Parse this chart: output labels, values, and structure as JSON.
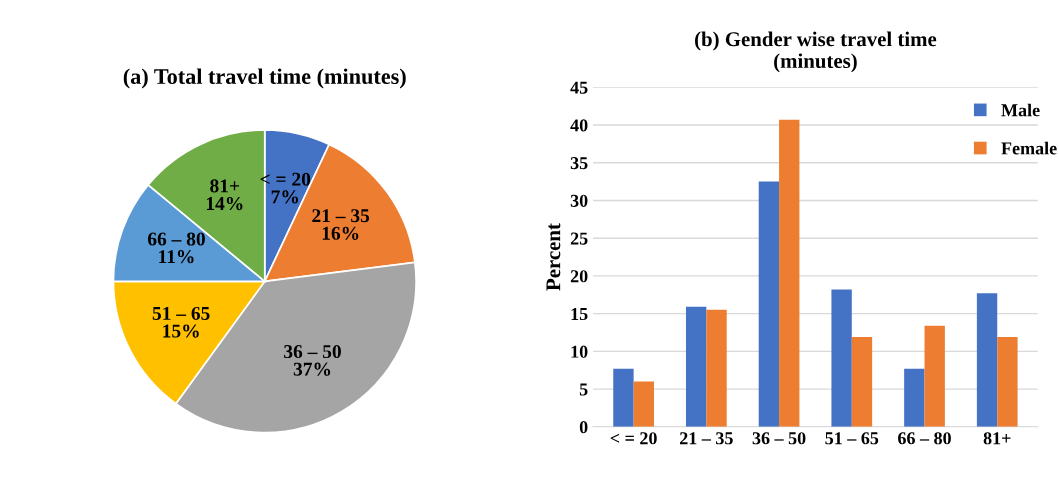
{
  "chart_data": [
    {
      "type": "pie",
      "title": "(a) Total travel time (minutes)",
      "categories": [
        "< = 20",
        "21 – 35",
        "36 – 50",
        "51 – 65",
        "66 – 80",
        "81+"
      ],
      "values": [
        7,
        16,
        37,
        15,
        11,
        14
      ],
      "colors": [
        "#4472c4",
        "#ed7d31",
        "#a5a5a5",
        "#ffc000",
        "#5b9bd5",
        "#70ad47"
      ],
      "value_labels": [
        "7%",
        "16%",
        "37%",
        "15%",
        "11%",
        "14%"
      ]
    },
    {
      "type": "bar",
      "title": "(b) Gender wise travel time\n(minutes)",
      "ylabel": "Percent",
      "categories": [
        "< = 20",
        "21 – 35",
        "36 – 50",
        "51 – 65",
        "66 – 80",
        "81+"
      ],
      "ylim": [
        0,
        45
      ],
      "yticks": [
        0,
        5,
        10,
        15,
        20,
        25,
        30,
        35,
        40,
        45
      ],
      "grid": "y",
      "legend": "top right",
      "series": [
        {
          "name": "Male",
          "color": "#4472c4",
          "values": [
            7.7,
            15.9,
            32.5,
            18.2,
            7.7,
            17.7
          ]
        },
        {
          "name": "Female",
          "color": "#ed7d31",
          "values": [
            6.0,
            15.5,
            40.7,
            11.9,
            13.4,
            11.9
          ]
        }
      ]
    }
  ]
}
